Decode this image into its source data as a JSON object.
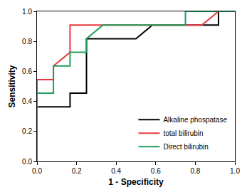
{
  "chart_data": {
    "type": "line",
    "x_label": "1 - Specificity",
    "y_label": "Sensitivity",
    "xlim": [
      0,
      1
    ],
    "ylim": [
      0,
      1
    ],
    "xticks": [
      {
        "value": 0,
        "label": "0.0"
      },
      0.2,
      0.4,
      0.6,
      0.8,
      {
        "value": 1,
        "label": "1.0"
      }
    ],
    "yticks": [
      {
        "value": 0,
        "label": "0.0"
      },
      0.2,
      0.4,
      0.6,
      0.8,
      {
        "value": 1,
        "label": "1.0"
      }
    ],
    "grid": false,
    "legend": "lower right",
    "series": [
      {
        "name": "Alkaline phospatase",
        "color": "#000000",
        "x": [
          0,
          0,
          0.167,
          0.167,
          0.25,
          0.25,
          0.5,
          0.583,
          0.917,
          0.917,
          1
        ],
        "values": [
          0,
          0.364,
          0.364,
          0.455,
          0.455,
          0.818,
          0.818,
          0.909,
          0.909,
          1,
          1
        ]
      },
      {
        "name": "total bilirubin",
        "color": "#e8393f",
        "x": [
          0,
          0,
          0.083,
          0.083,
          0.167,
          0.167,
          0.833,
          0.917,
          1
        ],
        "values": [
          0,
          0.545,
          0.545,
          0.636,
          0.727,
          0.909,
          0.909,
          1,
          1
        ]
      },
      {
        "name": "Direct bilirubin",
        "color": "#1e9e5a",
        "x": [
          0,
          0,
          0.083,
          0.083,
          0.167,
          0.167,
          0.25,
          0.25,
          0.333,
          0.75,
          0.75,
          1
        ],
        "values": [
          0,
          0.455,
          0.455,
          0.636,
          0.636,
          0.727,
          0.727,
          0.818,
          0.909,
          0.909,
          1,
          1
        ]
      }
    ]
  }
}
